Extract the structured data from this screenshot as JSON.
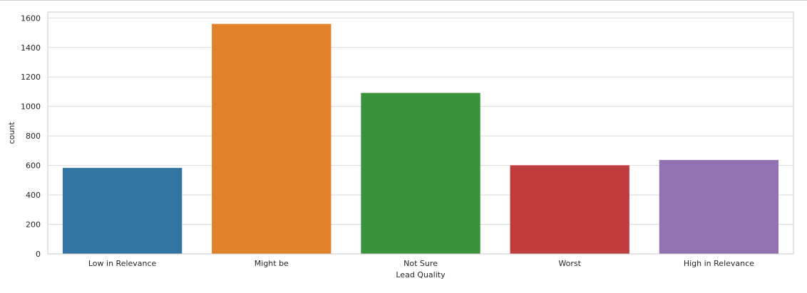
{
  "chart_data": {
    "type": "bar",
    "categories": [
      "Low in Relevance",
      "Might be",
      "Not Sure",
      "Worst",
      "High in Relevance"
    ],
    "values": [
      583,
      1560,
      1092,
      601,
      637
    ],
    "colors": [
      "#3274a1",
      "#e1812c",
      "#3a923a",
      "#c03d3e",
      "#9372b2"
    ],
    "title": "",
    "xlabel": "Lead Quality",
    "ylabel": "count",
    "ylim": [
      0,
      1640
    ],
    "yticks": [
      0,
      200,
      400,
      600,
      800,
      1000,
      1200,
      1400,
      1600
    ],
    "grid": true,
    "style": "seaborn whitegrid"
  }
}
